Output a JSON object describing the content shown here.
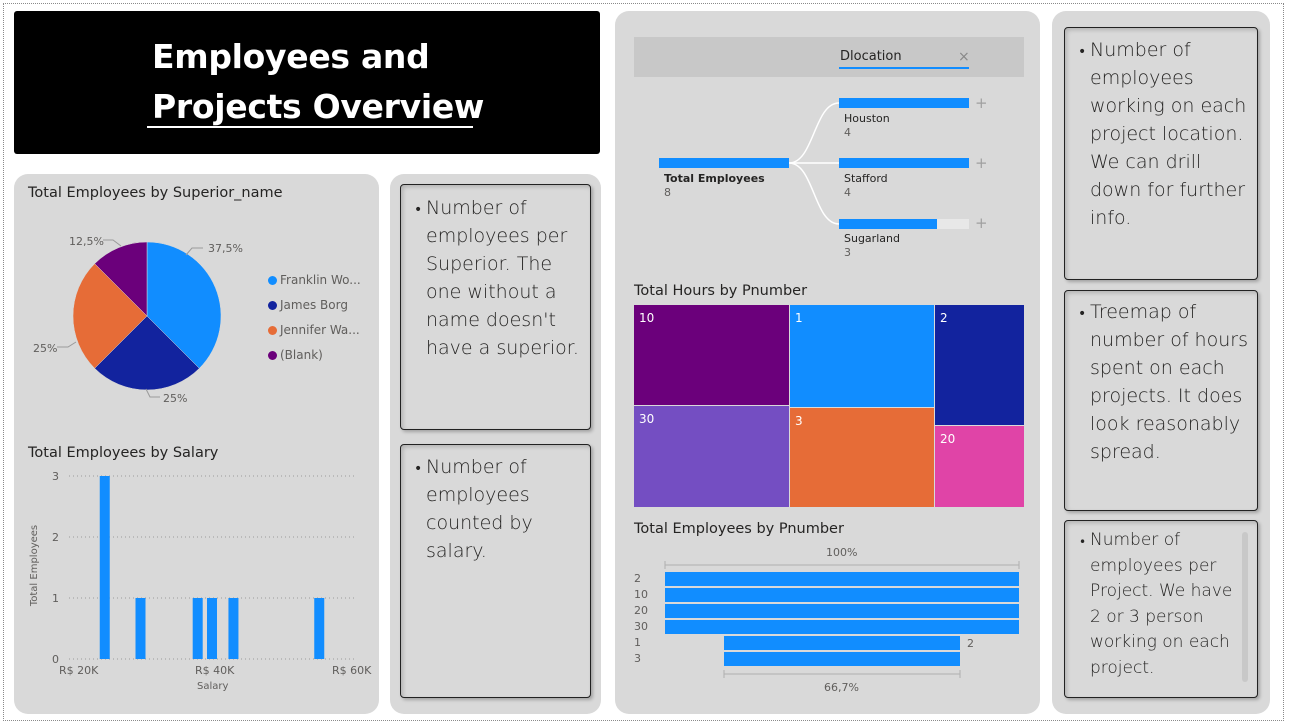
{
  "header": {
    "title_line1": "Employees and",
    "title_line2": "Projects Overview"
  },
  "pie": {
    "title": "Total Employees by Superior_name",
    "labels": {
      "a": "37,5%",
      "b": "25%",
      "c": "25%",
      "d": "12,5%"
    },
    "legend": [
      {
        "label": "Franklin Wo...",
        "color": "#118dff"
      },
      {
        "label": "James Borg",
        "color": "#12239e"
      },
      {
        "label": "Jennifer Wa...",
        "color": "#e66c37"
      },
      {
        "label": "(Blank)",
        "color": "#6b007b"
      }
    ]
  },
  "salary_chart": {
    "title": "Total Employees by Salary",
    "ylabel": "Total Employees",
    "xlabel": "Salary",
    "y_ticks": [
      "0",
      "1",
      "2",
      "3"
    ],
    "x_ticks": [
      "R$ 20K",
      "R$ 40K",
      "R$ 60K"
    ]
  },
  "notes": {
    "superior": "Number of employees per Superior. The one without a name doesn't have a superior.",
    "salary": "Number of employees counted by salary.",
    "location": "Number of employees working on each project location. We can drill down for further info.",
    "treemap": "Treemap of number of hours spent on each projects. It does look reasonably spread.",
    "project": "Number of employees per Project. We have 2 or 3 person working on each project."
  },
  "decomp": {
    "filter_label": "Dlocation",
    "filter_clear": "×",
    "root_label": "Total Employees",
    "root_value": "8",
    "nodes": [
      {
        "label": "Houston",
        "value": "4",
        "fill": 1.0
      },
      {
        "label": "Stafford",
        "value": "4",
        "fill": 1.0
      },
      {
        "label": "Sugarland",
        "value": "3",
        "fill": 0.75
      }
    ],
    "expand_icon": "+"
  },
  "treemap": {
    "title": "Total Hours by Pnumber",
    "cells": [
      {
        "label": "10",
        "color": "#6b007b"
      },
      {
        "label": "1",
        "color": "#118dff"
      },
      {
        "label": "2",
        "color": "#12239e"
      },
      {
        "label": "30",
        "color": "#744ec2"
      },
      {
        "label": "3",
        "color": "#e66c37"
      },
      {
        "label": "20",
        "color": "#e044a7"
      }
    ]
  },
  "funnel": {
    "title": "Total Employees by Pnumber",
    "top_label": "100%",
    "bottom_label": "66,7%",
    "side_value": "2",
    "categories": [
      "2",
      "10",
      "20",
      "30",
      "1",
      "3"
    ]
  },
  "colors": {
    "accent": "#118dff",
    "panel": "#d9d9d9",
    "title_bg": "#000000"
  },
  "chart_data": [
    {
      "type": "pie",
      "title": "Total Employees by Superior_name",
      "categories": [
        "Franklin Wo...",
        "James Borg",
        "Jennifer Wa...",
        "(Blank)"
      ],
      "values": [
        3,
        2,
        2,
        1
      ],
      "percent_labels": [
        "37,5%",
        "25%",
        "25%",
        "12,5%"
      ],
      "legend": "right"
    },
    {
      "type": "bar",
      "title": "Total Employees by Salary",
      "xlabel": "Salary",
      "ylabel": "Total Employees",
      "x": [
        25000,
        30000,
        38000,
        40000,
        43000,
        55000
      ],
      "values": [
        3,
        1,
        1,
        1,
        1,
        1
      ],
      "xlim": [
        20000,
        60000
      ],
      "ylim": [
        0,
        3
      ],
      "grid": true
    },
    {
      "type": "treemap",
      "title": "Total Hours by Pnumber",
      "categories": [
        "10",
        "1",
        "2",
        "30",
        "3",
        "20"
      ],
      "values": [
        55,
        52.5,
        25,
        55,
        50,
        25
      ]
    },
    {
      "type": "funnel",
      "title": "Total Employees by Pnumber",
      "categories": [
        "2",
        "10",
        "20",
        "30",
        "1",
        "3"
      ],
      "values": [
        3,
        3,
        3,
        3,
        2,
        2
      ]
    },
    {
      "type": "decomposition",
      "title": "Dlocation",
      "root": {
        "label": "Total Employees",
        "value": 8
      },
      "categories": [
        "Houston",
        "Stafford",
        "Sugarland"
      ],
      "values": [
        4,
        4,
        3
      ]
    }
  ]
}
